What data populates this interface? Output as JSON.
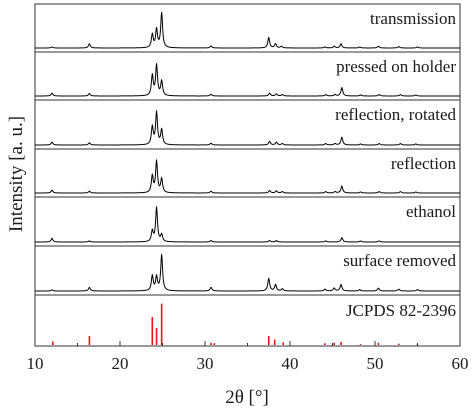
{
  "chart_data": {
    "type": "line",
    "xlabel": "2θ [°]",
    "ylabel": "Intensity [a. u.]",
    "xlim": [
      10,
      60
    ],
    "x_ticks": [
      10,
      20,
      30,
      40,
      50,
      60
    ],
    "y_ticks_labeled": false,
    "grid": false,
    "legend": "none",
    "colors": {
      "data": "#000000",
      "reference": "#e8141b",
      "frame": "#333333"
    },
    "series": [
      {
        "name": "transmission",
        "baseline": 0.05,
        "peaks": [
          [
            12.0,
            0.03
          ],
          [
            16.4,
            0.12
          ],
          [
            23.8,
            0.38
          ],
          [
            24.3,
            0.52
          ],
          [
            24.9,
            1.0
          ],
          [
            30.7,
            0.06
          ],
          [
            37.5,
            0.3
          ],
          [
            38.3,
            0.12
          ],
          [
            39.0,
            0.05
          ],
          [
            44.1,
            0.03
          ],
          [
            45.2,
            0.05
          ],
          [
            46.0,
            0.12
          ],
          [
            48.2,
            0.03
          ],
          [
            50.4,
            0.05
          ],
          [
            52.8,
            0.04
          ],
          [
            55.0,
            0.03
          ]
        ]
      },
      {
        "name": "pressed on holder",
        "baseline": 0.05,
        "peaks": [
          [
            12.0,
            0.08
          ],
          [
            16.4,
            0.07
          ],
          [
            23.8,
            0.58
          ],
          [
            24.3,
            0.87
          ],
          [
            24.9,
            0.42
          ],
          [
            30.7,
            0.05
          ],
          [
            37.6,
            0.08
          ],
          [
            38.4,
            0.06
          ],
          [
            39.1,
            0.04
          ],
          [
            44.2,
            0.04
          ],
          [
            45.3,
            0.04
          ],
          [
            46.1,
            0.24
          ],
          [
            48.3,
            0.03
          ],
          [
            50.5,
            0.04
          ],
          [
            53.0,
            0.04
          ],
          [
            54.8,
            0.03
          ]
        ]
      },
      {
        "name": "reflection, rotated",
        "baseline": 0.05,
        "peaks": [
          [
            12.0,
            0.08
          ],
          [
            16.4,
            0.06
          ],
          [
            23.8,
            0.5
          ],
          [
            24.3,
            0.9
          ],
          [
            24.9,
            0.42
          ],
          [
            30.7,
            0.05
          ],
          [
            37.6,
            0.1
          ],
          [
            38.4,
            0.08
          ],
          [
            39.1,
            0.04
          ],
          [
            44.2,
            0.04
          ],
          [
            45.3,
            0.04
          ],
          [
            46.1,
            0.22
          ],
          [
            48.3,
            0.03
          ],
          [
            50.5,
            0.04
          ],
          [
            53.0,
            0.04
          ],
          [
            54.8,
            0.03
          ]
        ]
      },
      {
        "name": "reflection",
        "baseline": 0.05,
        "peaks": [
          [
            12.0,
            0.08
          ],
          [
            16.4,
            0.05
          ],
          [
            23.8,
            0.48
          ],
          [
            24.3,
            0.9
          ],
          [
            24.9,
            0.4
          ],
          [
            30.7,
            0.05
          ],
          [
            37.6,
            0.07
          ],
          [
            38.4,
            0.06
          ],
          [
            39.1,
            0.04
          ],
          [
            44.2,
            0.04
          ],
          [
            45.3,
            0.04
          ],
          [
            46.1,
            0.2
          ],
          [
            48.3,
            0.03
          ],
          [
            50.5,
            0.04
          ],
          [
            53.0,
            0.04
          ],
          [
            54.8,
            0.03
          ]
        ]
      },
      {
        "name": "ethanol",
        "baseline": 0.05,
        "peaks": [
          [
            12.0,
            0.1
          ],
          [
            16.4,
            0.03
          ],
          [
            23.8,
            0.3
          ],
          [
            24.3,
            0.95
          ],
          [
            24.9,
            0.2
          ],
          [
            30.7,
            0.04
          ],
          [
            37.6,
            0.04
          ],
          [
            38.4,
            0.04
          ],
          [
            44.2,
            0.03
          ],
          [
            46.1,
            0.12
          ],
          [
            48.3,
            0.03
          ],
          [
            50.5,
            0.03
          ]
        ]
      },
      {
        "name": "surface removed",
        "baseline": 0.05,
        "peaks": [
          [
            12.0,
            0.03
          ],
          [
            16.4,
            0.1
          ],
          [
            23.8,
            0.42
          ],
          [
            24.3,
            0.38
          ],
          [
            24.9,
            1.0
          ],
          [
            30.7,
            0.1
          ],
          [
            37.5,
            0.35
          ],
          [
            38.3,
            0.18
          ],
          [
            39.1,
            0.06
          ],
          [
            44.1,
            0.05
          ],
          [
            45.2,
            0.08
          ],
          [
            46.0,
            0.18
          ],
          [
            48.2,
            0.04
          ],
          [
            50.4,
            0.08
          ],
          [
            52.8,
            0.05
          ],
          [
            55.0,
            0.04
          ]
        ]
      }
    ],
    "reference": {
      "name": "JCPDS 82-2396",
      "sticks": [
        [
          12.1,
          0.08
        ],
        [
          16.4,
          0.2
        ],
        [
          23.8,
          0.62
        ],
        [
          24.3,
          0.38
        ],
        [
          24.9,
          0.92
        ],
        [
          30.7,
          0.05
        ],
        [
          31.1,
          0.04
        ],
        [
          37.5,
          0.2
        ],
        [
          38.2,
          0.12
        ],
        [
          39.2,
          0.06
        ],
        [
          44.1,
          0.04
        ],
        [
          45.2,
          0.05
        ],
        [
          46.0,
          0.07
        ],
        [
          48.3,
          0.02
        ],
        [
          50.4,
          0.05
        ],
        [
          52.8,
          0.03
        ],
        [
          55.0,
          0.02
        ]
      ]
    }
  }
}
